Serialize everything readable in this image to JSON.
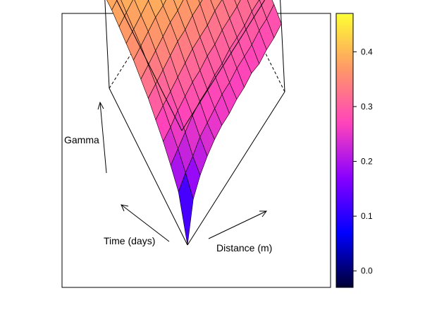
{
  "chart_data": {
    "type": "surface3d",
    "axis_labels": {
      "z": "Gamma",
      "x": "Time (days)",
      "y": "Distance (m)"
    },
    "zlim": [
      0,
      0.47
    ],
    "colorbar": {
      "ticks": [
        {
          "value": 0.0,
          "label": "0.0"
        },
        {
          "value": 0.1,
          "label": "0.1"
        },
        {
          "value": 0.2,
          "label": "0.2"
        },
        {
          "value": 0.3,
          "label": "0.3"
        },
        {
          "value": 0.4,
          "label": "0.4"
        }
      ],
      "range": [
        -0.03,
        0.47
      ],
      "colors": [
        "#000033",
        "#0000ff",
        "#8800ff",
        "#ff44bb",
        "#ff9966",
        "#ffff33"
      ]
    },
    "surface": {
      "rows": 12,
      "cols": 14,
      "gamma": [
        [
          0.0,
          0.14,
          0.19,
          0.22,
          0.24,
          0.25,
          0.25,
          0.26,
          0.26,
          0.27,
          0.26,
          0.27,
          0.27,
          0.28
        ],
        [
          0.16,
          0.19,
          0.21,
          0.24,
          0.25,
          0.26,
          0.27,
          0.27,
          0.28,
          0.28,
          0.28,
          0.29,
          0.29,
          0.3
        ],
        [
          0.21,
          0.23,
          0.25,
          0.27,
          0.28,
          0.28,
          0.29,
          0.29,
          0.3,
          0.3,
          0.3,
          0.31,
          0.31,
          0.31
        ],
        [
          0.25,
          0.26,
          0.28,
          0.29,
          0.3,
          0.3,
          0.31,
          0.31,
          0.32,
          0.32,
          0.32,
          0.33,
          0.33,
          0.33
        ],
        [
          0.28,
          0.29,
          0.3,
          0.31,
          0.32,
          0.33,
          0.33,
          0.33,
          0.34,
          0.34,
          0.34,
          0.35,
          0.35,
          0.35
        ],
        [
          0.31,
          0.32,
          0.33,
          0.34,
          0.35,
          0.35,
          0.36,
          0.36,
          0.36,
          0.37,
          0.37,
          0.37,
          0.37,
          0.38
        ],
        [
          0.33,
          0.34,
          0.35,
          0.36,
          0.37,
          0.37,
          0.38,
          0.38,
          0.38,
          0.39,
          0.39,
          0.39,
          0.39,
          0.4
        ],
        [
          0.35,
          0.36,
          0.37,
          0.38,
          0.38,
          0.39,
          0.39,
          0.4,
          0.4,
          0.4,
          0.41,
          0.41,
          0.41,
          0.41
        ],
        [
          0.36,
          0.37,
          0.38,
          0.39,
          0.4,
          0.4,
          0.41,
          0.41,
          0.41,
          0.42,
          0.42,
          0.42,
          0.43,
          0.43
        ],
        [
          0.37,
          0.38,
          0.39,
          0.4,
          0.41,
          0.41,
          0.42,
          0.42,
          0.43,
          0.43,
          0.43,
          0.44,
          0.44,
          0.45
        ],
        [
          0.38,
          0.39,
          0.4,
          0.41,
          0.42,
          0.42,
          0.43,
          0.43,
          0.44,
          0.44,
          0.44,
          0.45,
          0.45,
          0.46
        ],
        [
          0.38,
          0.39,
          0.4,
          0.41,
          0.42,
          0.43,
          0.43,
          0.44,
          0.44,
          0.45,
          0.45,
          0.46,
          0.46,
          0.47
        ]
      ]
    }
  }
}
